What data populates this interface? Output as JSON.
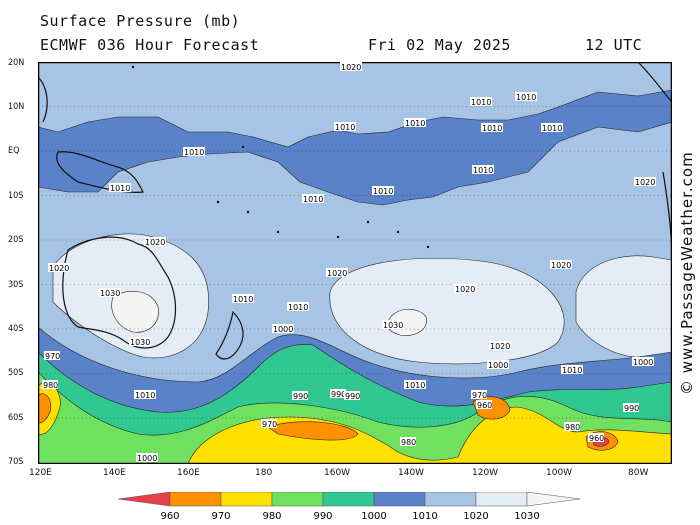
{
  "header": {
    "title": "Surface Pressure (mb)",
    "model": "ECMWF 036 Hour Forecast",
    "date": "Fri 02 May 2025",
    "time": "12 UTC"
  },
  "axes": {
    "lat_labels": [
      "20N",
      "10N",
      "EQ",
      "10S",
      "20S",
      "30S",
      "40S",
      "50S",
      "60S",
      "70S"
    ],
    "lon_labels": [
      "120E",
      "140E",
      "160E",
      "180",
      "160W",
      "140W",
      "120W",
      "100W",
      "80W"
    ]
  },
  "contour_labels": {
    "l960": "960",
    "l970": "970",
    "l980": "980",
    "l990": "990",
    "l1000": "1000",
    "l1010": "1010",
    "l1020": "1020",
    "l1030": "1030"
  },
  "colorbar": {
    "ticks": [
      "960",
      "970",
      "980",
      "990",
      "1000",
      "1010",
      "1020",
      "1030"
    ],
    "colors": [
      "#e8404a",
      "#ff9000",
      "#ffe000",
      "#70e060",
      "#30c890",
      "#5a82c8",
      "#a8c4e4",
      "#e4ecf6",
      "#f4f4f4"
    ]
  },
  "credit": "© www.PassageWeather.com"
}
